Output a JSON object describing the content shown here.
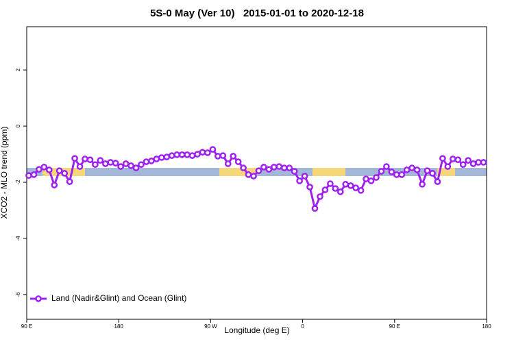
{
  "chart_data": {
    "type": "line",
    "title": "5S-0 May (Ver 10)   2015-01-01 to 2020-12-18",
    "xlabel": "Longitude (deg E)",
    "ylabel": "XCO2 - MLO trend (ppm)",
    "xlim": [
      90,
      540
    ],
    "ylim": [
      -6.88,
      3.54
    ],
    "xticks": [
      {
        "value": 90,
        "label": "90 E"
      },
      180,
      {
        "value": 270,
        "label": "90 W"
      },
      {
        "value": 360,
        "label": "0"
      },
      {
        "value": 450,
        "label": "90 E"
      },
      {
        "value": 540,
        "label": "180"
      }
    ],
    "yticks": [
      2,
      0,
      -2,
      -4,
      -6
    ],
    "grid": false,
    "legend": "bottom-left",
    "x": [
      92,
      97,
      102,
      107,
      112,
      117,
      122,
      127,
      132,
      137,
      142,
      147,
      152,
      157,
      162,
      167,
      172,
      177,
      182,
      187,
      192,
      197,
      202,
      207,
      212,
      217,
      222,
      227,
      232,
      237,
      242,
      247,
      252,
      257,
      262,
      267,
      272,
      277,
      282,
      287,
      292,
      297,
      302,
      307,
      312,
      317,
      322,
      327,
      332,
      337,
      342,
      347,
      352,
      357,
      362,
      367,
      372,
      377,
      382,
      387,
      392,
      397,
      402,
      407,
      412,
      417,
      422,
      427,
      432,
      437,
      442,
      447,
      452,
      457,
      462,
      467,
      472,
      477,
      482,
      487,
      492,
      497,
      502,
      507,
      512,
      517,
      522,
      527,
      532,
      537
    ],
    "series": [
      {
        "name": "Land (Nadir&Glint) and Ocean (Glint)",
        "color": "#a020f0",
        "values": [
          -1.76,
          -1.73,
          -1.54,
          -1.46,
          -1.56,
          -2.1,
          -1.59,
          -1.68,
          -1.98,
          -1.15,
          -1.44,
          -1.17,
          -1.2,
          -1.37,
          -1.22,
          -1.34,
          -1.29,
          -1.32,
          -1.44,
          -1.34,
          -1.41,
          -1.49,
          -1.37,
          -1.27,
          -1.24,
          -1.17,
          -1.12,
          -1.1,
          -1.05,
          -1.02,
          -1.02,
          -1.02,
          -1.05,
          -1.0,
          -0.93,
          -0.95,
          -0.83,
          -1.07,
          -1.05,
          -1.34,
          -1.07,
          -1.27,
          -1.49,
          -1.73,
          -1.78,
          -1.59,
          -1.46,
          -1.54,
          -1.46,
          -1.44,
          -1.49,
          -1.49,
          -1.61,
          -1.95,
          -1.78,
          -2.17,
          -2.93,
          -2.51,
          -2.27,
          -2.05,
          -2.22,
          -2.34,
          -2.07,
          -2.12,
          -2.2,
          -2.29,
          -1.88,
          -1.95,
          -1.83,
          -1.61,
          -1.44,
          -1.63,
          -1.73,
          -1.73,
          -1.56,
          -1.49,
          -1.56,
          -2.07,
          -1.59,
          -1.68,
          -1.98,
          -1.15,
          -1.44,
          -1.17,
          -1.2,
          -1.37,
          -1.22,
          -1.34,
          -1.29,
          -1.29
        ]
      }
    ]
  }
}
